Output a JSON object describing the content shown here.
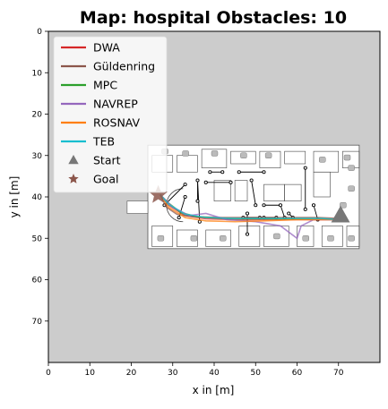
{
  "chart_data": {
    "type": "line",
    "title": "Map: hospital Obstacles: 10",
    "xlabel": "x in [m]",
    "ylabel": "y in [m]",
    "xlim": [
      0,
      80
    ],
    "ylim": [
      80,
      0
    ],
    "y_inverted": true,
    "xticks": [
      0,
      10,
      20,
      30,
      40,
      50,
      60,
      70
    ],
    "yticks": [
      0,
      10,
      20,
      30,
      40,
      50,
      60,
      70
    ],
    "grid": false,
    "legend_placement": "upper-left",
    "background_color": "#cccccc",
    "map_color": "#ffffff",
    "map_extent": {
      "x": [
        19,
        75
      ],
      "y": [
        27.5,
        52.5
      ]
    },
    "series": [
      {
        "name": "DWA",
        "color": "#d62728",
        "x": [
          27,
          29,
          33,
          38,
          45,
          52,
          60,
          66,
          70
        ],
        "y": [
          39.5,
          42,
          44.5,
          45.3,
          45.5,
          45.5,
          45.5,
          45.5,
          45.5
        ]
      },
      {
        "name": "Güldenring",
        "color": "#8c564b",
        "x": [
          27,
          28.5,
          31,
          35,
          42,
          50,
          58,
          65,
          70
        ],
        "y": [
          39.5,
          42.5,
          44.2,
          44.8,
          45.0,
          45.0,
          45.0,
          45.0,
          45.2
        ]
      },
      {
        "name": "MPC",
        "color": "#2ca02c",
        "x": [
          27,
          29,
          32,
          36,
          43,
          51,
          59,
          66,
          70
        ],
        "y": [
          39.5,
          41.5,
          43.8,
          44.8,
          45.3,
          45.3,
          45.3,
          45.3,
          45.5
        ]
      },
      {
        "name": "NAVREP",
        "color": "#9467bd",
        "x": [
          27,
          30,
          34,
          38,
          43,
          50,
          56,
          60,
          61,
          64,
          69
        ],
        "y": [
          39.5,
          42.5,
          44.5,
          44,
          45.5,
          46,
          47,
          50,
          47,
          45.5,
          45.5
        ]
      },
      {
        "name": "ROSNAV",
        "color": "#ff7f0e",
        "x": [
          27,
          29,
          33,
          38,
          45,
          52,
          60,
          66,
          70
        ],
        "y": [
          39.5,
          42.5,
          45,
          45.8,
          46,
          45.8,
          45.5,
          45.5,
          45.5
        ]
      },
      {
        "name": "TEB",
        "color": "#17becf",
        "x": [
          27,
          29,
          33,
          38,
          45,
          52,
          60,
          66,
          70
        ],
        "y": [
          39.5,
          41.8,
          44.2,
          45.0,
          45.2,
          45.2,
          45.2,
          45.2,
          45.5
        ]
      }
    ],
    "markers": [
      {
        "name": "Start",
        "shape": "triangle",
        "color": "#777777",
        "x": 70.5,
        "y": 44.5
      },
      {
        "name": "Goal",
        "shape": "star",
        "color": "#8c564b",
        "x": 26.5,
        "y": 39.5
      }
    ],
    "obstacle_paths": [
      {
        "x": [
          28,
          33
        ],
        "y": [
          42,
          37
        ]
      },
      {
        "x": [
          33,
          31.5
        ],
        "y": [
          40,
          45
        ]
      },
      {
        "x": [
          36,
          36,
          36.5
        ],
        "y": [
          41,
          36,
          46
        ]
      },
      {
        "x": [
          38,
          44
        ],
        "y": [
          36.5,
          36.5
        ]
      },
      {
        "x": [
          39,
          42
        ],
        "y": [
          34,
          34
        ]
      },
      {
        "x": [
          46,
          52
        ],
        "y": [
          34,
          34
        ]
      },
      {
        "x": [
          49,
          50
        ],
        "y": [
          36,
          42
        ]
      },
      {
        "x": [
          52,
          56,
          57
        ],
        "y": [
          42,
          42,
          45
        ]
      },
      {
        "x": [
          47,
          51
        ],
        "y": [
          45,
          45
        ]
      },
      {
        "x": [
          52,
          55
        ],
        "y": [
          45,
          45
        ]
      },
      {
        "x": [
          48,
          48
        ],
        "y": [
          44,
          49
        ]
      },
      {
        "x": [
          62,
          62
        ],
        "y": [
          33,
          43
        ]
      },
      {
        "x": [
          58,
          59
        ],
        "y": [
          44,
          45
        ]
      },
      {
        "x": [
          64,
          65
        ],
        "y": [
          42,
          45.5
        ]
      }
    ]
  }
}
